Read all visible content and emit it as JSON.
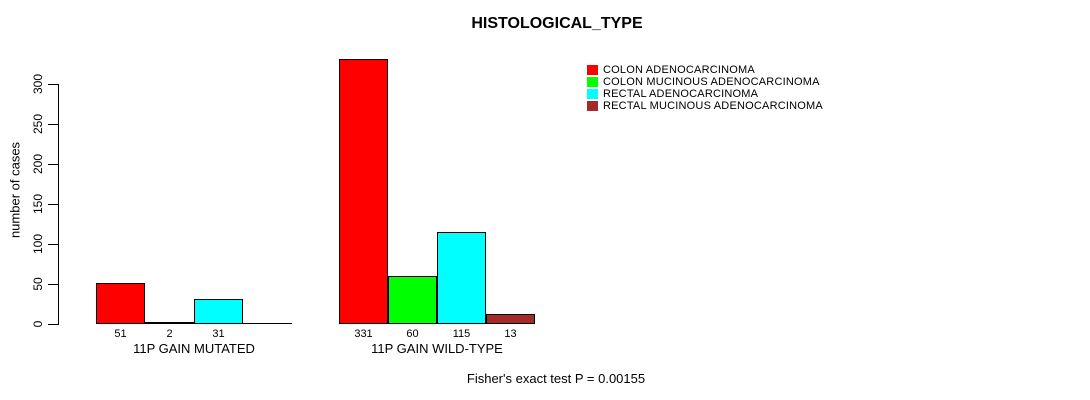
{
  "chart_data": {
    "type": "bar",
    "title": "HISTOLOGICAL_TYPE",
    "ylabel": "number of cases",
    "yticks": [
      0,
      50,
      100,
      150,
      200,
      250,
      300
    ],
    "ylim": [
      0,
      331
    ],
    "grid": false,
    "legend_position": "top-right",
    "categories": [
      "11P GAIN MUTATED",
      "11P GAIN WILD-TYPE"
    ],
    "series": [
      {
        "name": "COLON ADENOCARCINOMA",
        "color": "#FF0000",
        "values": [
          51,
          331
        ]
      },
      {
        "name": "COLON MUCINOUS ADENOCARCINOMA",
        "color": "#00FF00",
        "values": [
          2,
          60
        ]
      },
      {
        "name": "RECTAL ADENOCARCINOMA",
        "color": "#00FFFF",
        "values": [
          31,
          115
        ]
      },
      {
        "name": "RECTAL MUCINOUS ADENOCARCINOMA",
        "color": "#A52A2A",
        "values": [
          0,
          13
        ]
      }
    ],
    "bar_value_labels": [
      [
        "51",
        "2",
        "31",
        ""
      ],
      [
        "331",
        "60",
        "115",
        "13"
      ]
    ],
    "annotation": "Fisher's exact test P = 0.00155"
  },
  "colors": {
    "axis": "#000000",
    "text": "#000000",
    "background": "#FFFFFF"
  }
}
